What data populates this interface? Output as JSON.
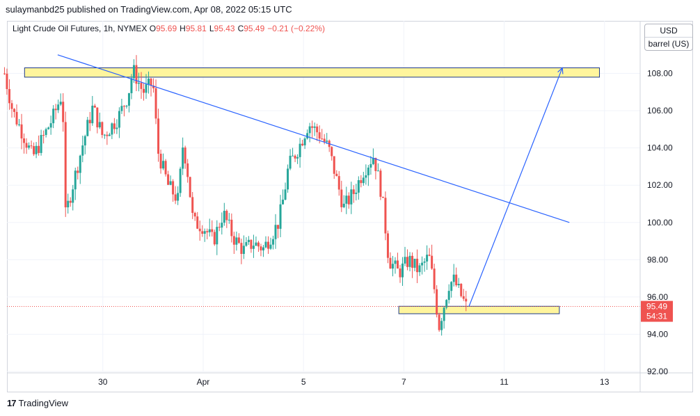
{
  "header": {
    "publisher_line": "sulaymanbd25 published on TradingView.com, Apr 08, 2022 05:15 UTC"
  },
  "legend": {
    "symbol": "Light Crude Oil Futures, 1h, NYMEX",
    "open_label": "O",
    "open": "95.69",
    "high_label": "H",
    "high": "95.81",
    "low_label": "L",
    "low": "95.43",
    "close_label": "C",
    "close": "95.49",
    "change": "−0.21 (−0.22%)"
  },
  "units": {
    "currency": "USD",
    "unit": "barrel (US)"
  },
  "price_tag": {
    "price": "95.49",
    "countdown": "54:31"
  },
  "footer": {
    "brand": "TradingView",
    "logo_glyph": "17"
  },
  "colors": {
    "up": "#26a69a",
    "down": "#ef5350",
    "trendline": "#2962ff",
    "zone_fill": "#fff59d",
    "zone_border": "#1e3a8a",
    "grid": "#f0f3fa",
    "price_line": "#ef5350"
  },
  "chart_data": {
    "type": "candlestick",
    "title": "Light Crude Oil Futures, 1h, NYMEX",
    "ylim": [
      92,
      110
    ],
    "y_ticks": [
      "92.00",
      "94.00",
      "96.00",
      "98.00",
      "100.00",
      "102.00",
      "104.00",
      "106.00",
      "108.00"
    ],
    "x_ticks": [
      {
        "label": "30",
        "x": 30
      },
      {
        "label": "Apr",
        "x": 31
      },
      {
        "label": "5",
        "x": 32
      },
      {
        "label": "7",
        "x": 33
      },
      {
        "label": "11",
        "x": 34
      },
      {
        "label": "13",
        "x": 35
      }
    ],
    "x_range": [
      29.1,
      35.3
    ],
    "grid": true,
    "current_price": 95.49,
    "waypoints": [
      [
        29.0,
        108.5
      ],
      [
        29.1,
        106.0
      ],
      [
        29.2,
        104.8
      ],
      [
        29.3,
        103.5
      ],
      [
        29.4,
        104.5
      ],
      [
        29.5,
        105.6
      ],
      [
        29.6,
        107.0
      ],
      [
        29.62,
        100.2
      ],
      [
        29.7,
        102.0
      ],
      [
        29.8,
        104.2
      ],
      [
        29.9,
        106.2
      ],
      [
        30.0,
        104.6
      ],
      [
        30.15,
        105.6
      ],
      [
        30.25,
        106.8
      ],
      [
        30.3,
        108.2
      ],
      [
        30.4,
        107.0
      ],
      [
        30.5,
        107.5
      ],
      [
        30.55,
        103.8
      ],
      [
        30.65,
        102.0
      ],
      [
        30.75,
        101.2
      ],
      [
        30.8,
        104.3
      ],
      [
        30.85,
        102.5
      ],
      [
        30.9,
        100.0
      ],
      [
        31.0,
        99.8
      ],
      [
        31.1,
        99.0
      ],
      [
        31.2,
        100.5
      ],
      [
        31.3,
        99.2
      ],
      [
        31.4,
        98.5
      ],
      [
        31.5,
        98.9
      ],
      [
        31.6,
        98.6
      ],
      [
        31.7,
        99.5
      ],
      [
        31.75,
        100.0
      ],
      [
        31.8,
        101.3
      ],
      [
        31.85,
        103.0
      ],
      [
        31.95,
        104.0
      ],
      [
        32.05,
        105.3
      ],
      [
        32.15,
        104.8
      ],
      [
        32.25,
        104.0
      ],
      [
        32.32,
        102.5
      ],
      [
        32.4,
        100.8
      ],
      [
        32.5,
        101.6
      ],
      [
        32.6,
        102.8
      ],
      [
        32.7,
        103.6
      ],
      [
        32.78,
        101.5
      ],
      [
        32.85,
        98.0
      ],
      [
        32.95,
        97.3
      ],
      [
        33.05,
        98.0
      ],
      [
        33.15,
        97.4
      ],
      [
        33.25,
        98.2
      ],
      [
        33.3,
        96.6
      ],
      [
        33.35,
        94.4
      ],
      [
        33.45,
        96.7
      ],
      [
        33.5,
        96.9
      ],
      [
        33.55,
        96.3
      ],
      [
        33.62,
        95.5
      ]
    ],
    "trendline": {
      "x1": 29.55,
      "y1": 109.0,
      "x2": 34.65,
      "y2": 100.0
    },
    "zones": [
      {
        "x1": 29.22,
        "x2": 34.95,
        "y1": 107.8,
        "y2": 108.3
      },
      {
        "x1": 32.95,
        "x2": 34.55,
        "y1": 95.1,
        "y2": 95.5
      }
    ],
    "projection_arrow": {
      "x1": 33.65,
      "y1": 95.5,
      "x2": 34.58,
      "y2": 108.3
    }
  }
}
